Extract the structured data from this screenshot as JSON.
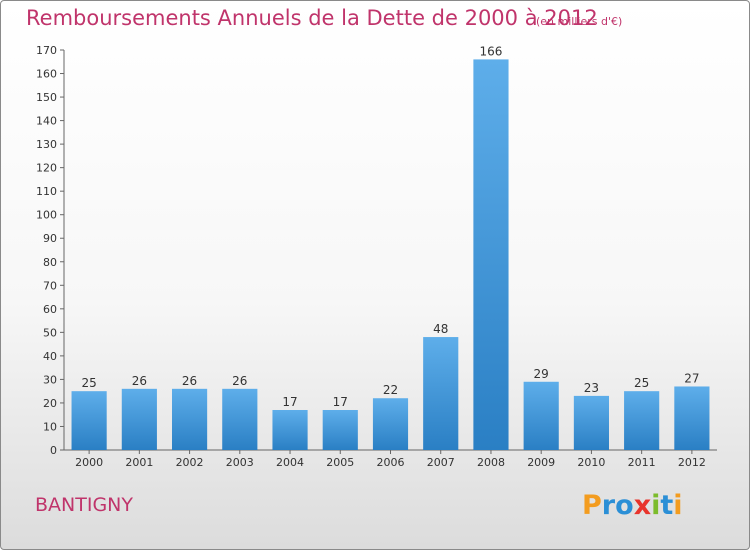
{
  "header": {
    "title": "Remboursements Annuels de la Dette de 2000 à 2012",
    "subtitle": "(en milliers d'€)"
  },
  "footer": {
    "commune": "BANTIGNY",
    "logo": {
      "text": "Proxiti",
      "letters": [
        {
          "ch": "P",
          "color": "#f39c1f"
        },
        {
          "ch": "r",
          "color": "#2b8fd6"
        },
        {
          "ch": "o",
          "color": "#2b8fd6"
        },
        {
          "ch": "x",
          "color": "#e8342c"
        },
        {
          "ch": "i",
          "color": "#7cbc2c"
        },
        {
          "ch": "t",
          "color": "#2b8fd6"
        },
        {
          "ch": "i",
          "color": "#f39c1f"
        }
      ]
    }
  },
  "chart_data": {
    "type": "bar",
    "title": "Remboursements Annuels de la Dette de 2000 à 2012",
    "subtitle": "(en milliers d'€)",
    "categories": [
      "2000",
      "2001",
      "2002",
      "2003",
      "2004",
      "2005",
      "2006",
      "2007",
      "2008",
      "2009",
      "2010",
      "2011",
      "2012"
    ],
    "values": [
      25,
      26,
      26,
      26,
      17,
      17,
      22,
      48,
      166,
      29,
      23,
      25,
      27
    ],
    "data_labels": [
      "25",
      "26",
      "26",
      "26",
      "17",
      "17",
      "22",
      "48",
      "166",
      "29",
      "23",
      "25",
      "27"
    ],
    "ylim": [
      0,
      170
    ],
    "yticks": [
      0,
      10,
      20,
      30,
      40,
      50,
      60,
      70,
      80,
      90,
      100,
      110,
      120,
      130,
      140,
      150,
      160,
      170
    ],
    "grid": false,
    "colors": {
      "bar_light": "#5eaeea",
      "bar_dark": "#2a7fc4",
      "axis": "#666666",
      "title": "#c0346b"
    }
  }
}
